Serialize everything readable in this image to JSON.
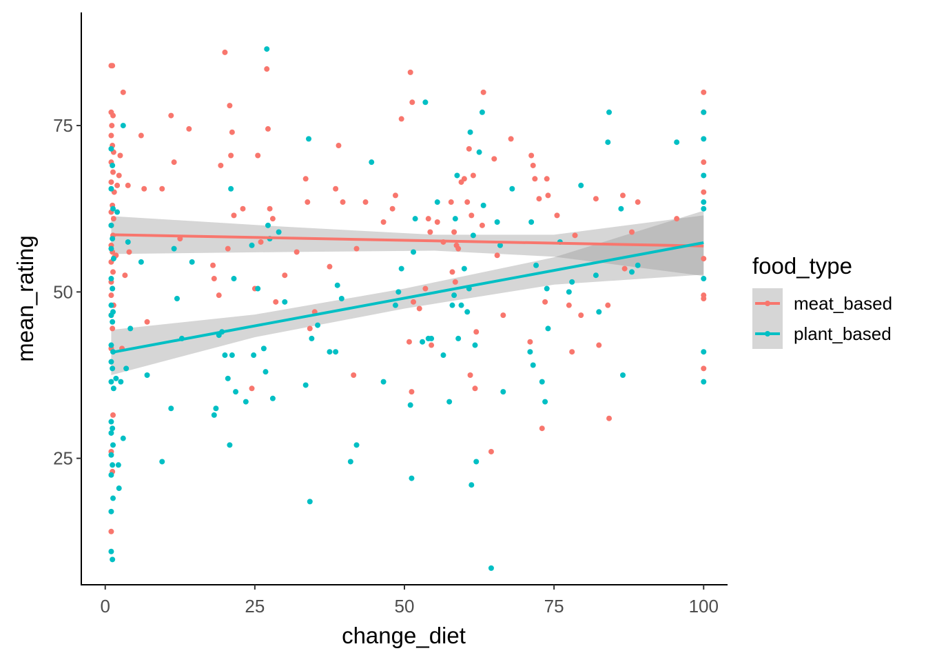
{
  "chart_data": {
    "type": "scatter",
    "xlabel": "change_diet",
    "ylabel": "mean_rating",
    "xlim": [
      -4,
      104
    ],
    "ylim": [
      6,
      92
    ],
    "x_ticks": [
      "0",
      "25",
      "50",
      "75",
      "100"
    ],
    "y_ticks": [
      "25",
      "50",
      "75"
    ],
    "grid": false,
    "legend": {
      "title": "food_type",
      "placement": "right",
      "entries": [
        "meat_based",
        "plant_based"
      ]
    },
    "colors": {
      "meat_based": "#F8766D",
      "plant_based": "#00BFC4",
      "ribbon": "#999999"
    },
    "series": [
      {
        "name": "meat_based",
        "fit": {
          "x": [
            1,
            100
          ],
          "y": [
            58.6,
            56.9
          ]
        },
        "ci_upper": [
          [
            1,
            61.4
          ],
          [
            30,
            59.8
          ],
          [
            55,
            58.6
          ],
          [
            75,
            58.6
          ],
          [
            100,
            61.5
          ]
        ],
        "ci_lower": [
          [
            1,
            55.7
          ],
          [
            30,
            56.0
          ],
          [
            55,
            56.2
          ],
          [
            75,
            55.3
          ],
          [
            100,
            52.4
          ]
        ],
        "points": [
          [
            1,
            84
          ],
          [
            1.2,
            84
          ],
          [
            1,
            77
          ],
          [
            1.3,
            76.5
          ],
          [
            1.1,
            75
          ],
          [
            1,
            73.5
          ],
          [
            1.2,
            72
          ],
          [
            1.4,
            71
          ],
          [
            1,
            69.5
          ],
          [
            1.3,
            68
          ],
          [
            1,
            66.5
          ],
          [
            1.5,
            65
          ],
          [
            1.2,
            63
          ],
          [
            1,
            62
          ],
          [
            1.4,
            61
          ],
          [
            1,
            60
          ],
          [
            1.3,
            58.5
          ],
          [
            1,
            57
          ],
          [
            1.2,
            56
          ],
          [
            1.5,
            55.2
          ],
          [
            1,
            54.5
          ],
          [
            1.3,
            53
          ],
          [
            1,
            51.5
          ],
          [
            1.2,
            50.5
          ],
          [
            1,
            49.5
          ],
          [
            1.4,
            48
          ],
          [
            1,
            46.5
          ],
          [
            1.2,
            44.5
          ],
          [
            1,
            41.5
          ],
          [
            1.3,
            31.5
          ],
          [
            1,
            26
          ],
          [
            1.2,
            23
          ],
          [
            1,
            14
          ],
          [
            1.8,
            55.5
          ],
          [
            2,
            66
          ],
          [
            2.3,
            67.5
          ],
          [
            2.5,
            70.5
          ],
          [
            2.8,
            41.5
          ],
          [
            3,
            80
          ],
          [
            3.3,
            52.5
          ],
          [
            3.8,
            66
          ],
          [
            4,
            56
          ],
          [
            6,
            73.5
          ],
          [
            6.5,
            65.5
          ],
          [
            7,
            45.5
          ],
          [
            9.5,
            65.5
          ],
          [
            11,
            76.5
          ],
          [
            11.5,
            69.5
          ],
          [
            12.5,
            58
          ],
          [
            14,
            74.5
          ],
          [
            18,
            54
          ],
          [
            18.2,
            52
          ],
          [
            19,
            49.5
          ],
          [
            19.3,
            69
          ],
          [
            20,
            86
          ],
          [
            20.5,
            56.5
          ],
          [
            20.8,
            78
          ],
          [
            21,
            70.5
          ],
          [
            21.2,
            74
          ],
          [
            21.5,
            61.5
          ],
          [
            23,
            62.5
          ],
          [
            24.5,
            35.5
          ],
          [
            25,
            50.5
          ],
          [
            25.5,
            70.5
          ],
          [
            26,
            57.5
          ],
          [
            27,
            83.5
          ],
          [
            27.2,
            74.5
          ],
          [
            27.5,
            62.5
          ],
          [
            28,
            61
          ],
          [
            28.5,
            48.5
          ],
          [
            30,
            52.5
          ],
          [
            32,
            56
          ],
          [
            33.5,
            67
          ],
          [
            33.8,
            63.5
          ],
          [
            34.2,
            44.5
          ],
          [
            35,
            47
          ],
          [
            37.5,
            53.8
          ],
          [
            38.5,
            65.5
          ],
          [
            39,
            72
          ],
          [
            39.7,
            63.5
          ],
          [
            41.5,
            37.5
          ],
          [
            42,
            56.5
          ],
          [
            43.5,
            63.5
          ],
          [
            46.5,
            60.5
          ],
          [
            48,
            62.5
          ],
          [
            48.5,
            64.5
          ],
          [
            49.5,
            76
          ],
          [
            51,
            83
          ],
          [
            51.3,
            78.5
          ],
          [
            50.8,
            42.5
          ],
          [
            51.2,
            35
          ],
          [
            51.5,
            48.5
          ],
          [
            52.5,
            47.5
          ],
          [
            53.5,
            50.5
          ],
          [
            54,
            61
          ],
          [
            54.3,
            59
          ],
          [
            54.5,
            42
          ],
          [
            55.5,
            60.5
          ],
          [
            56.5,
            57.5
          ],
          [
            57.8,
            63.5
          ],
          [
            58,
            53
          ],
          [
            58.3,
            59
          ],
          [
            58.5,
            51.5
          ],
          [
            58.7,
            57
          ],
          [
            59,
            56.5
          ],
          [
            59.5,
            66.5
          ],
          [
            60,
            67
          ],
          [
            60.5,
            63.5
          ],
          [
            60.8,
            71.5
          ],
          [
            61,
            37.5
          ],
          [
            61.2,
            61.5
          ],
          [
            61.5,
            67.5
          ],
          [
            61.8,
            35.5
          ],
          [
            62,
            44
          ],
          [
            63,
            60
          ],
          [
            63.2,
            80
          ],
          [
            64.5,
            26
          ],
          [
            65,
            70
          ],
          [
            65.5,
            55.5
          ],
          [
            66.5,
            46.5
          ],
          [
            67.8,
            73
          ],
          [
            71,
            42.5
          ],
          [
            71.2,
            70.5
          ],
          [
            71.5,
            69
          ],
          [
            71.8,
            67
          ],
          [
            72.5,
            64
          ],
          [
            73,
            29.5
          ],
          [
            73.5,
            48.5
          ],
          [
            73.8,
            67
          ],
          [
            74,
            64.5
          ],
          [
            75.5,
            61.5
          ],
          [
            77.5,
            48
          ],
          [
            78,
            41
          ],
          [
            78.5,
            58.5
          ],
          [
            79.5,
            46.5
          ],
          [
            82,
            64
          ],
          [
            82.5,
            42
          ],
          [
            84,
            48
          ],
          [
            84.2,
            31
          ],
          [
            86.5,
            64.5
          ],
          [
            86.8,
            53.5
          ],
          [
            88,
            59
          ],
          [
            89,
            63.5
          ],
          [
            95.5,
            61
          ],
          [
            100,
            80
          ],
          [
            100,
            77
          ],
          [
            100,
            69.5
          ],
          [
            100,
            65
          ],
          [
            100,
            55
          ],
          [
            100,
            49.5
          ],
          [
            100,
            49
          ],
          [
            100,
            38.5
          ]
        ]
      },
      {
        "name": "plant_based",
        "fit": {
          "x": [
            1,
            100
          ],
          "y": [
            40.9,
            57.4
          ]
        },
        "ci_upper": [
          [
            1,
            44.3
          ],
          [
            25,
            46.6
          ],
          [
            50,
            50.5
          ],
          [
            75,
            55.2
          ],
          [
            100,
            62.2
          ]
        ],
        "ci_lower": [
          [
            1,
            37.5
          ],
          [
            25,
            43.2
          ],
          [
            50,
            47.5
          ],
          [
            75,
            51.1
          ],
          [
            100,
            52.6
          ]
        ],
        "points": [
          [
            1,
            71.5
          ],
          [
            1.2,
            69
          ],
          [
            1,
            65.5
          ],
          [
            1.3,
            62.5
          ],
          [
            1,
            60
          ],
          [
            1.2,
            58
          ],
          [
            1,
            56.5
          ],
          [
            1.4,
            55
          ],
          [
            1,
            52
          ],
          [
            1.2,
            50.5
          ],
          [
            1,
            48
          ],
          [
            1.3,
            47
          ],
          [
            1,
            46.5
          ],
          [
            1.2,
            45.5
          ],
          [
            1,
            42
          ],
          [
            1.3,
            41
          ],
          [
            1,
            39.5
          ],
          [
            1.2,
            38.5
          ],
          [
            1,
            36.5
          ],
          [
            1.4,
            35.5
          ],
          [
            1,
            30.5
          ],
          [
            1.2,
            29.5
          ],
          [
            1,
            28.8
          ],
          [
            1.3,
            27
          ],
          [
            1,
            25.5
          ],
          [
            1.2,
            24
          ],
          [
            1,
            22.5
          ],
          [
            1.3,
            19
          ],
          [
            1,
            17
          ],
          [
            1,
            11
          ],
          [
            1.2,
            9.8
          ],
          [
            1.8,
            37
          ],
          [
            2,
            62
          ],
          [
            2.2,
            24
          ],
          [
            2.3,
            20.5
          ],
          [
            2.6,
            36.5
          ],
          [
            3,
            75
          ],
          [
            3,
            28
          ],
          [
            3.5,
            38.5
          ],
          [
            3.8,
            57.5
          ],
          [
            4.2,
            44.5
          ],
          [
            6,
            54.5
          ],
          [
            7,
            37.5
          ],
          [
            9.5,
            24.5
          ],
          [
            11,
            32.5
          ],
          [
            11.5,
            56.5
          ],
          [
            12,
            49
          ],
          [
            12.8,
            43
          ],
          [
            14.5,
            54.5
          ],
          [
            18.5,
            32.5
          ],
          [
            18.2,
            31.5
          ],
          [
            19,
            43.5
          ],
          [
            19.5,
            44
          ],
          [
            20,
            40.5
          ],
          [
            20.5,
            37
          ],
          [
            20.8,
            27
          ],
          [
            21,
            65.5
          ],
          [
            21.2,
            40.5
          ],
          [
            21.5,
            52
          ],
          [
            21.8,
            35
          ],
          [
            23.5,
            33.5
          ],
          [
            24.5,
            57
          ],
          [
            24.8,
            40.5
          ],
          [
            25.5,
            50.5
          ],
          [
            26.5,
            41.5
          ],
          [
            26.8,
            38
          ],
          [
            27,
            86.5
          ],
          [
            27.2,
            60
          ],
          [
            27.5,
            58
          ],
          [
            28,
            34
          ],
          [
            29,
            59
          ],
          [
            30,
            48.5
          ],
          [
            33.5,
            36
          ],
          [
            34,
            73
          ],
          [
            34.2,
            18.5
          ],
          [
            34.5,
            43
          ],
          [
            35.5,
            45
          ],
          [
            37.5,
            41
          ],
          [
            38.5,
            41
          ],
          [
            38.8,
            51
          ],
          [
            39.5,
            49
          ],
          [
            41,
            24.5
          ],
          [
            42,
            27
          ],
          [
            44.5,
            69.5
          ],
          [
            46.5,
            36.5
          ],
          [
            48.5,
            48
          ],
          [
            49,
            50
          ],
          [
            49.5,
            53.5
          ],
          [
            51,
            33
          ],
          [
            51.2,
            22
          ],
          [
            51.5,
            56
          ],
          [
            51.8,
            61
          ],
          [
            53,
            42.5
          ],
          [
            53.5,
            78.5
          ],
          [
            54,
            43
          ],
          [
            54.5,
            43
          ],
          [
            55.5,
            63.5
          ],
          [
            56.5,
            40.5
          ],
          [
            57.5,
            33.5
          ],
          [
            58,
            48
          ],
          [
            58.3,
            49.5
          ],
          [
            58.5,
            61
          ],
          [
            58.8,
            67.5
          ],
          [
            59,
            43
          ],
          [
            59.5,
            48
          ],
          [
            60,
            53.5
          ],
          [
            60.5,
            47
          ],
          [
            60.8,
            50.5
          ],
          [
            61,
            74
          ],
          [
            61.2,
            21
          ],
          [
            61.5,
            58.5
          ],
          [
            61.8,
            42
          ],
          [
            62,
            24.5
          ],
          [
            62.5,
            71
          ],
          [
            63,
            77
          ],
          [
            63.2,
            63
          ],
          [
            64.5,
            8.5
          ],
          [
            65.5,
            60.5
          ],
          [
            66,
            57
          ],
          [
            66.5,
            35
          ],
          [
            68,
            65.5
          ],
          [
            71,
            41
          ],
          [
            71.2,
            60.5
          ],
          [
            71.5,
            39
          ],
          [
            72,
            54
          ],
          [
            73,
            36.5
          ],
          [
            73.5,
            33.5
          ],
          [
            73.8,
            50.5
          ],
          [
            74,
            44.5
          ],
          [
            76,
            57.5
          ],
          [
            77.5,
            50
          ],
          [
            78,
            51.5
          ],
          [
            79.5,
            66
          ],
          [
            82,
            52.5
          ],
          [
            82.5,
            47
          ],
          [
            84,
            72.5
          ],
          [
            84.2,
            77
          ],
          [
            86.2,
            62.5
          ],
          [
            86.5,
            37.5
          ],
          [
            88,
            53
          ],
          [
            89,
            54
          ],
          [
            95.5,
            72.5
          ],
          [
            100,
            77
          ],
          [
            100,
            73
          ],
          [
            100,
            67.5
          ],
          [
            100,
            63.5
          ],
          [
            100,
            62.5
          ],
          [
            100,
            52
          ],
          [
            100,
            41
          ],
          [
            100,
            36.5
          ]
        ]
      }
    ]
  }
}
